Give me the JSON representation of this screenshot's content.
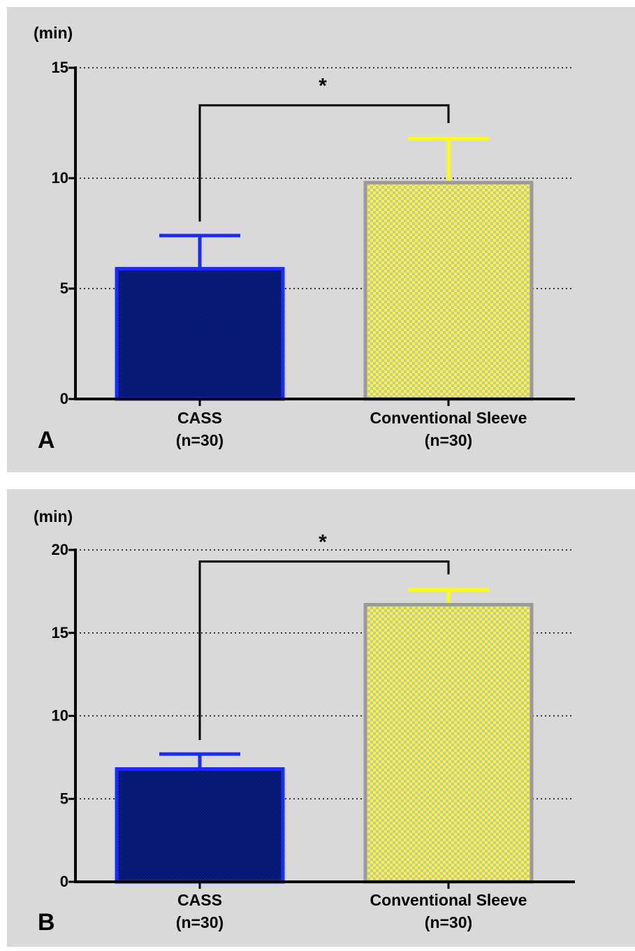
{
  "chart_data": [
    {
      "type": "bar",
      "panel_label": "A",
      "unit_label": "(min)",
      "ylim": [
        0,
        15
      ],
      "yticks": [
        0,
        5,
        10,
        15
      ],
      "grid": "dotted-horizontal",
      "categories": [
        {
          "name": "CASS",
          "n_label": "(n=30)"
        },
        {
          "name": "Conventional Sleeve",
          "n_label": "(n=30)"
        }
      ],
      "values": [
        5.9,
        9.8
      ],
      "errors": [
        1.5,
        2.0
      ],
      "colors": {
        "bar_fill": [
          "#0a1e8c",
          "#f2f23a"
        ],
        "bar_edge": [
          "#1a2bff",
          "#9a9a9a"
        ],
        "error_bar": [
          "#1a2bff",
          "#ffff00"
        ]
      },
      "significance": {
        "marker": "*",
        "between": [
          0,
          1
        ],
        "bracket_y": 13.3
      }
    },
    {
      "type": "bar",
      "panel_label": "B",
      "unit_label": "(min)",
      "ylim": [
        0,
        20
      ],
      "yticks": [
        0,
        5,
        10,
        15,
        20
      ],
      "grid": "dotted-horizontal",
      "categories": [
        {
          "name": "CASS",
          "n_label": "(n=30)"
        },
        {
          "name": "Conventional Sleeve",
          "n_label": "(n=30)"
        }
      ],
      "values": [
        6.8,
        16.7
      ],
      "errors": [
        0.9,
        0.9
      ],
      "colors": {
        "bar_fill": [
          "#0a1e8c",
          "#f2f23a"
        ],
        "bar_edge": [
          "#1a2bff",
          "#9a9a9a"
        ],
        "error_bar": [
          "#1a2bff",
          "#ffff00"
        ]
      },
      "significance": {
        "marker": "*",
        "between": [
          0,
          1
        ],
        "bracket_y": 19.3
      }
    }
  ]
}
